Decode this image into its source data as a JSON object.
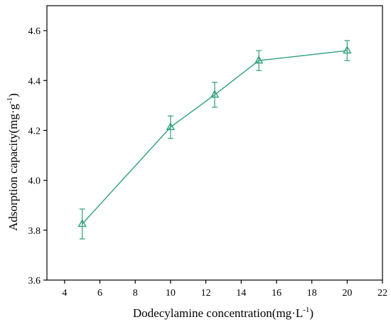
{
  "chart_data": {
    "type": "line",
    "xlabel": "Dodecylamine concentration(mg·L",
    "xlabel_sup": "-1",
    "xlabel_end": ")",
    "ylabel": "Adsorption capacity(mg·g",
    "ylabel_sup": "-1",
    "ylabel_end": ")",
    "xlim": [
      3,
      22
    ],
    "ylim": [
      3.6,
      4.7
    ],
    "xticks": [
      4,
      6,
      8,
      10,
      12,
      14,
      16,
      18,
      20,
      22
    ],
    "yticks": [
      3.6,
      3.8,
      4.0,
      4.2,
      4.4,
      4.6
    ],
    "xtick_labels": [
      "4",
      "6",
      "8",
      "10",
      "12",
      "14",
      "16",
      "18",
      "20",
      "22"
    ],
    "ytick_labels": [
      "3.6",
      "3.8",
      "4.0",
      "4.2",
      "4.4",
      "4.6"
    ],
    "series": [
      {
        "x": [
          5,
          10,
          12.5,
          15,
          20
        ],
        "y": [
          3.825,
          4.213,
          4.343,
          4.48,
          4.52
        ],
        "error": [
          0.06,
          0.045,
          0.05,
          0.04,
          0.04
        ],
        "marker": "triangle-open",
        "color": "#2ea07a"
      }
    ],
    "grid": false,
    "legend": "none"
  }
}
